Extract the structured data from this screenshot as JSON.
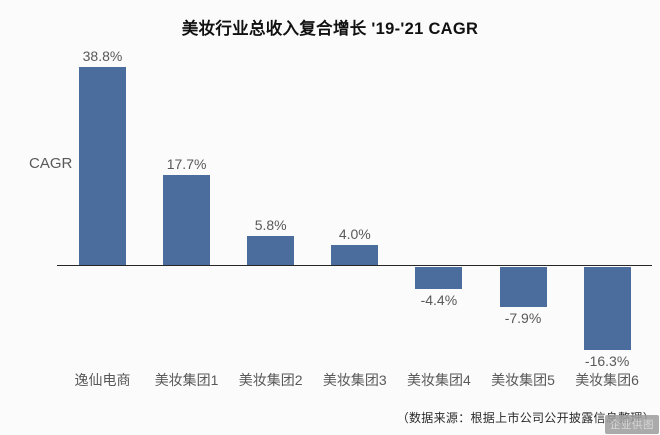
{
  "chart_data": {
    "type": "bar",
    "title": "美妆行业总收入复合增长 '19-'21 CAGR",
    "ylabel": "CAGR",
    "xlabel": "",
    "categories": [
      "逸仙电商",
      "美妆集团1",
      "美妆集团2",
      "美妆集团3",
      "美妆集团4",
      "美妆集团5",
      "美妆集团6"
    ],
    "values": [
      38.8,
      17.7,
      5.8,
      4.0,
      -4.4,
      -7.9,
      -16.3
    ],
    "value_labels": [
      "38.8%",
      "17.7%",
      "5.8%",
      "4.0%",
      "-4.4%",
      "-7.9%",
      "-16.3%"
    ],
    "bar_color": "#4a6d9e",
    "label_color": "#595959",
    "axis_line_color": "#262626",
    "grid": false,
    "legend": false,
    "ylim": [
      -20,
      45
    ]
  },
  "footer": {
    "source_note": "（数据来源：根据上市公司公开披露信息整理）",
    "watermark": "企业供图"
  }
}
